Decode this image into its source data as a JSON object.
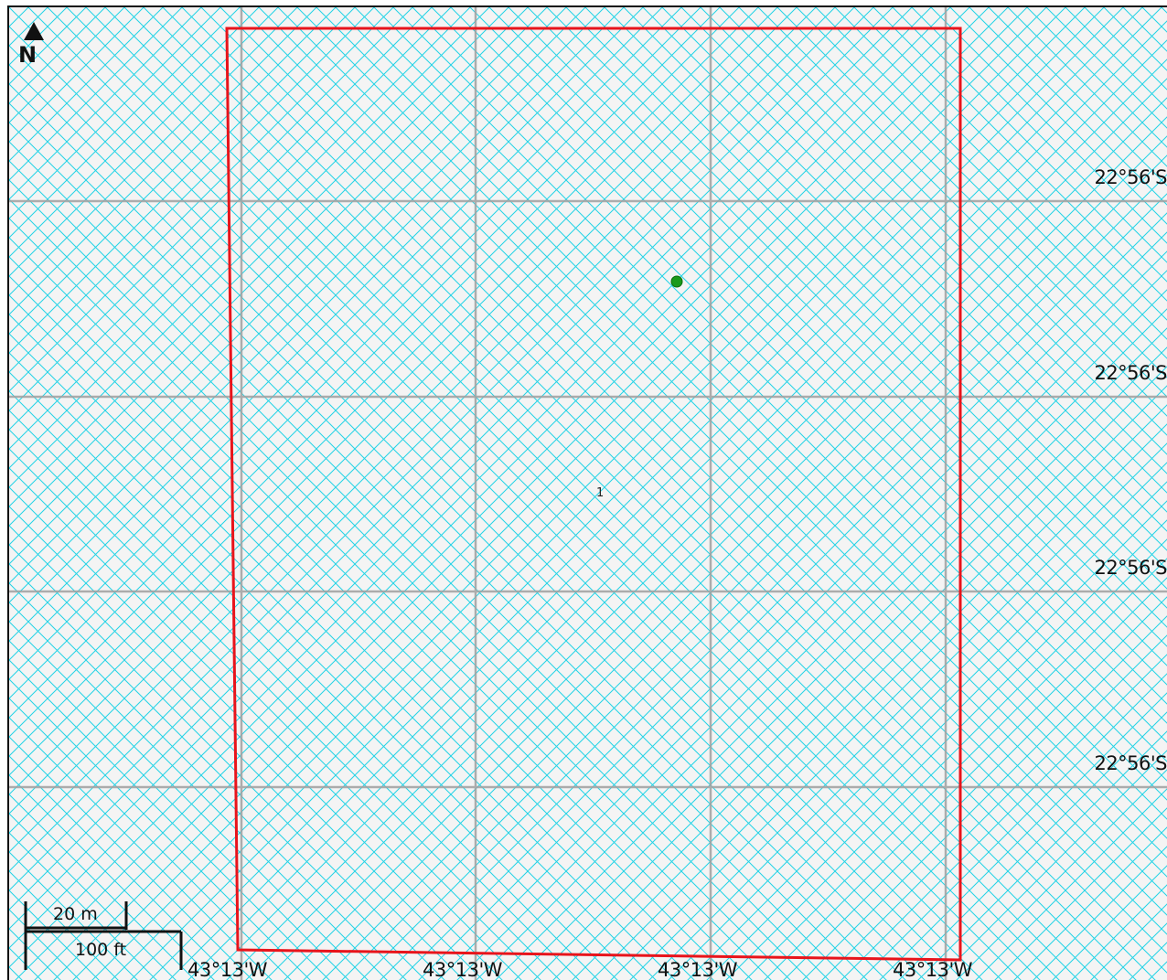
{
  "map": {
    "north_label": "N",
    "parcel_label": "1",
    "lat_labels": [
      "22°56'S",
      "22°56'S",
      "22°56'S",
      "22°56'S"
    ],
    "lon_labels": [
      "43°13'W",
      "43°13'W",
      "43°13'W",
      "43°13'W"
    ],
    "scale": {
      "metric": "20 m",
      "imperial": "100 ft"
    },
    "colors": {
      "hatch": "#22d3e6",
      "grid": "#a0a0a0",
      "boundary": "#e8141b",
      "point": "#1a9a1a",
      "background": "#f4f4f4"
    }
  }
}
